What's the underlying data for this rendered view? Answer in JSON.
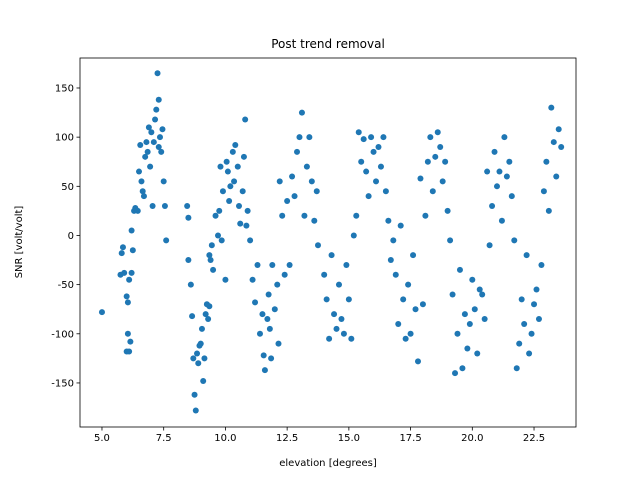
{
  "chart_data": {
    "type": "scatter",
    "title": "Post trend removal",
    "xlabel": "elevation [degrees]",
    "ylabel": "SNR [volt/volt]",
    "color": "#1f77b4",
    "grid": false,
    "xlim": [
      4.11,
      24.2
    ],
    "ylim": [
      -194.8,
      180.5
    ],
    "xticks": [
      {
        "value": 5,
        "label": "5.0"
      },
      7.5,
      {
        "value": 10,
        "label": "10.0"
      },
      12.5,
      {
        "value": 15,
        "label": "15.0"
      },
      17.5,
      {
        "value": 20,
        "label": "20.0"
      },
      22.5
    ],
    "yticks": [
      -150,
      -100,
      -50,
      0,
      50,
      100,
      150
    ],
    "x": [
      5.0,
      5.75,
      5.8,
      5.85,
      5.9,
      6.0,
      6.0,
      6.05,
      6.05,
      6.1,
      6.15,
      6.1,
      6.2,
      6.2,
      6.25,
      6.3,
      6.35,
      6.45,
      6.5,
      6.55,
      6.6,
      6.65,
      6.7,
      6.75,
      6.8,
      6.85,
      6.9,
      6.95,
      7.0,
      7.05,
      7.1,
      7.15,
      7.2,
      7.25,
      7.3,
      7.3,
      7.35,
      7.4,
      7.45,
      7.5,
      7.55,
      7.6,
      8.45,
      8.5,
      8.5,
      8.6,
      8.65,
      8.7,
      8.75,
      8.8,
      8.85,
      8.9,
      8.95,
      9.0,
      9.05,
      9.1,
      9.15,
      9.2,
      9.25,
      9.3,
      9.35,
      9.35,
      9.4,
      9.45,
      9.5,
      9.6,
      9.7,
      9.75,
      9.8,
      9.85,
      9.9,
      10.0,
      10.05,
      10.1,
      10.15,
      10.2,
      10.3,
      10.35,
      10.4,
      10.5,
      10.55,
      10.6,
      10.7,
      10.75,
      10.8,
      10.85,
      10.9,
      11.0,
      11.1,
      11.2,
      11.3,
      11.4,
      11.5,
      11.55,
      11.6,
      11.7,
      11.75,
      11.8,
      11.85,
      11.9,
      12.0,
      12.1,
      12.15,
      12.2,
      12.3,
      12.4,
      12.5,
      12.6,
      12.7,
      12.8,
      12.9,
      13.0,
      13.1,
      13.2,
      13.3,
      13.4,
      13.5,
      13.6,
      13.7,
      13.75,
      14.0,
      14.1,
      14.2,
      14.3,
      14.4,
      14.5,
      14.6,
      14.7,
      14.8,
      14.9,
      15.0,
      15.1,
      15.2,
      15.3,
      15.4,
      15.5,
      15.6,
      15.7,
      15.8,
      15.9,
      16.0,
      16.1,
      16.2,
      16.3,
      16.4,
      16.5,
      16.6,
      16.7,
      16.8,
      16.9,
      17.0,
      17.1,
      17.2,
      17.3,
      17.4,
      17.5,
      17.6,
      17.7,
      17.8,
      17.9,
      18.0,
      18.1,
      18.2,
      18.3,
      18.4,
      18.5,
      18.6,
      18.7,
      18.8,
      18.9,
      19.0,
      19.1,
      19.2,
      19.3,
      19.4,
      19.5,
      19.6,
      19.7,
      19.8,
      19.9,
      20.0,
      20.1,
      20.2,
      20.3,
      20.4,
      20.5,
      20.6,
      20.7,
      20.8,
      20.9,
      21.0,
      21.1,
      21.2,
      21.3,
      21.4,
      21.5,
      21.6,
      21.7,
      21.8,
      21.9,
      22.0,
      22.1,
      22.2,
      22.3,
      22.4,
      22.5,
      22.6,
      22.7,
      22.8,
      22.9,
      23.0,
      23.1,
      23.2,
      23.3,
      23.4,
      23.5,
      23.6
    ],
    "values": [
      -78,
      -40,
      -18,
      -12,
      -38,
      -118,
      -62,
      -68,
      -100,
      -118,
      -108,
      -45,
      -38,
      5,
      -15,
      25,
      28,
      25,
      65,
      92,
      55,
      45,
      40,
      80,
      95,
      85,
      110,
      70,
      105,
      30,
      95,
      118,
      128,
      165,
      138,
      90,
      100,
      85,
      108,
      55,
      30,
      -5,
      30,
      18,
      -25,
      -50,
      -82,
      -125,
      -162,
      -178,
      -120,
      -130,
      -112,
      -110,
      -95,
      -148,
      -125,
      -80,
      -70,
      -85,
      -72,
      -20,
      -25,
      -10,
      -35,
      20,
      0,
      25,
      70,
      -5,
      45,
      -45,
      75,
      65,
      35,
      50,
      85,
      55,
      92,
      70,
      30,
      12,
      45,
      80,
      118,
      10,
      25,
      -5,
      -45,
      -68,
      -30,
      -100,
      -80,
      -122,
      -137,
      -85,
      -60,
      -95,
      -125,
      -30,
      -75,
      -50,
      -110,
      55,
      20,
      -40,
      35,
      -30,
      60,
      40,
      85,
      100,
      125,
      20,
      70,
      100,
      55,
      15,
      45,
      -10,
      -40,
      -65,
      -105,
      -20,
      -80,
      -95,
      -50,
      -85,
      -100,
      -30,
      -65,
      -105,
      0,
      20,
      105,
      75,
      98,
      65,
      40,
      100,
      85,
      55,
      90,
      70,
      100,
      45,
      15,
      -25,
      -5,
      -40,
      -90,
      10,
      -65,
      -105,
      -50,
      -100,
      -20,
      -75,
      -128,
      58,
      -70,
      20,
      75,
      100,
      45,
      80,
      105,
      90,
      55,
      75,
      25,
      -5,
      -60,
      -140,
      -100,
      -35,
      -135,
      -80,
      -115,
      -90,
      -45,
      -75,
      -120,
      -55,
      -60,
      -85,
      65,
      -10,
      30,
      85,
      50,
      65,
      15,
      100,
      60,
      75,
      40,
      -5,
      -135,
      -110,
      -65,
      -90,
      -20,
      -120,
      -100,
      -70,
      -55,
      -85,
      -30,
      45,
      75,
      25,
      130,
      95,
      60,
      108,
      90
    ]
  }
}
